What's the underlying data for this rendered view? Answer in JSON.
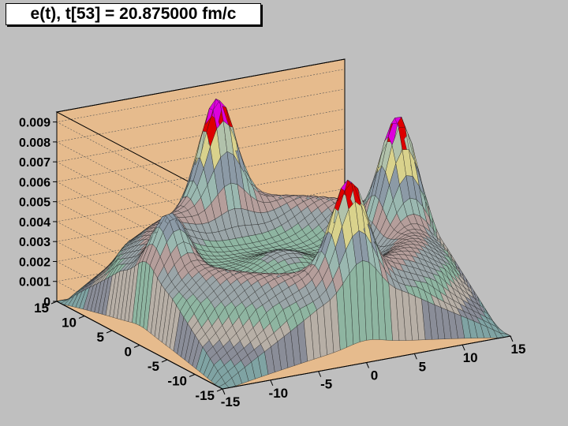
{
  "window": {
    "background": "#bfbfbf"
  },
  "title": "e(t), t[53] = 20.875000 fm/c",
  "chart_data": {
    "type": "surface",
    "title": "e(t), t[53] = 20.875000 fm/c",
    "xlim": [
      -15,
      15
    ],
    "ylim": [
      -15,
      15
    ],
    "zlim": [
      0,
      0.0095
    ],
    "x_ticks": [
      "-15",
      "-10",
      "-5",
      "0",
      "5",
      "10",
      "15"
    ],
    "y_ticks": [
      "-15",
      "-10",
      "-5",
      "0",
      "5",
      "10",
      "15"
    ],
    "z_ticks": [
      "0",
      "0.001",
      "0.002",
      "0.003",
      "0.004",
      "0.005",
      "0.006",
      "0.007",
      "0.008",
      "0.009"
    ],
    "z_values": [
      0,
      0.001,
      0.002,
      0.003,
      0.004,
      0.005,
      0.006,
      0.007,
      0.008,
      0.009
    ],
    "grid": true,
    "peaks": [
      {
        "x": 0,
        "y": 12,
        "z": 0.0094
      },
      {
        "x": 0,
        "y": -12,
        "z": 0.0088
      },
      {
        "x": -12,
        "y": 0,
        "z": 0.0064
      },
      {
        "x": 12,
        "y": 0,
        "z": 0.0092
      }
    ],
    "ring_floor": 0.0042,
    "center_floor": 0.0025,
    "corner_value": 0,
    "colors": {
      "background": "#bfbfbf",
      "panel": "#e6bb8d",
      "surface_bands": [
        "#7fa3a3",
        "#8a8d98",
        "#b7afa6",
        "#8eb5a1",
        "#9aa5a8",
        "#b59e9b",
        "#9ab8b0",
        "#8c9aa6",
        "#d9d28c",
        "#b1c2ab",
        "#c8a8a0"
      ],
      "peak_red": "#dd0000",
      "peak_magenta": "#dd00dd"
    }
  }
}
